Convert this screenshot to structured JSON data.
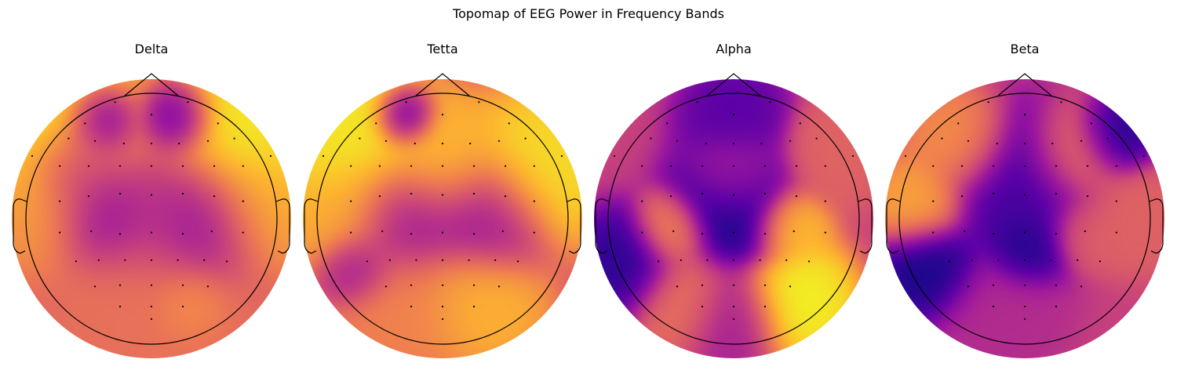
{
  "figure": {
    "title": "Topomap of EEG Power in Frequency Bands"
  },
  "colormap": {
    "name": "plasma",
    "stops": [
      "#0d0887",
      "#5c01a6",
      "#9c179e",
      "#cc4778",
      "#ed7953",
      "#fdb42f",
      "#f0f921"
    ]
  },
  "chart_data": [
    {
      "type": "heatmap",
      "title": "Delta",
      "blobs": [
        {
          "x": -0.7,
          "y": 0.6,
          "value": 0.98,
          "r": 0.35
        },
        {
          "x": 0.7,
          "y": 0.6,
          "value": 0.98,
          "r": 0.35
        },
        {
          "x": -0.85,
          "y": 0.05,
          "value": 0.75,
          "r": 0.25
        },
        {
          "x": 0.85,
          "y": 0.1,
          "value": 0.8,
          "r": 0.25
        },
        {
          "x": 0.0,
          "y": 0.1,
          "value": 0.42,
          "r": 0.3
        },
        {
          "x": -0.4,
          "y": 0.75,
          "value": 0.05,
          "r": 0.15
        },
        {
          "x": 0.2,
          "y": 0.78,
          "value": 0.1,
          "r": 0.15
        },
        {
          "x": -0.4,
          "y": 0.05,
          "value": 0.18,
          "r": 0.22
        },
        {
          "x": 0.4,
          "y": 0.0,
          "value": 0.2,
          "r": 0.25
        },
        {
          "x": -0.6,
          "y": 0.4,
          "value": 0.3,
          "r": 0.2
        },
        {
          "x": 0.0,
          "y": -0.7,
          "value": 0.65,
          "r": 0.45
        },
        {
          "x": 0.3,
          "y": -0.7,
          "value": 0.75,
          "r": 0.15
        }
      ]
    },
    {
      "type": "heatmap",
      "title": "Tetta",
      "blobs": [
        {
          "x": -0.75,
          "y": 0.6,
          "value": 0.98,
          "r": 0.35
        },
        {
          "x": 0.8,
          "y": 0.4,
          "value": 0.95,
          "r": 0.3
        },
        {
          "x": 0.0,
          "y": 0.45,
          "value": 0.85,
          "r": 0.25
        },
        {
          "x": -0.85,
          "y": 0.05,
          "value": 0.8,
          "r": 0.25
        },
        {
          "x": -0.3,
          "y": 0.8,
          "value": 0.05,
          "r": 0.12
        },
        {
          "x": -0.3,
          "y": 0.0,
          "value": 0.3,
          "r": 0.25
        },
        {
          "x": 0.35,
          "y": 0.0,
          "value": 0.3,
          "r": 0.25
        },
        {
          "x": -0.7,
          "y": -0.4,
          "value": 0.3,
          "r": 0.15
        },
        {
          "x": 0.3,
          "y": -0.65,
          "value": 0.85,
          "r": 0.25
        },
        {
          "x": -0.3,
          "y": -0.7,
          "value": 0.7,
          "r": 0.3
        }
      ]
    },
    {
      "type": "heatmap",
      "title": "Alpha",
      "blobs": [
        {
          "x": 0.0,
          "y": 0.1,
          "value": 0.0,
          "r": 0.25
        },
        {
          "x": 0.0,
          "y": 0.35,
          "value": 0.45,
          "r": 0.18
        },
        {
          "x": -0.5,
          "y": -0.1,
          "value": 0.75,
          "r": 0.15
        },
        {
          "x": 0.45,
          "y": -0.05,
          "value": 0.9,
          "r": 0.15
        },
        {
          "x": 0.5,
          "y": -0.65,
          "value": 1.0,
          "r": 0.22
        },
        {
          "x": -0.4,
          "y": -0.65,
          "value": 0.65,
          "r": 0.2
        },
        {
          "x": -0.85,
          "y": -0.35,
          "value": 0.05,
          "r": 0.2
        },
        {
          "x": 0.8,
          "y": 0.5,
          "value": 0.6,
          "r": 0.2
        },
        {
          "x": 0.0,
          "y": 0.8,
          "value": 0.15,
          "r": 0.2
        },
        {
          "x": 0.0,
          "y": -0.8,
          "value": 0.35,
          "r": 0.2
        }
      ]
    },
    {
      "type": "heatmap",
      "title": "Beta",
      "blobs": [
        {
          "x": -0.5,
          "y": 0.6,
          "value": 0.75,
          "r": 0.2
        },
        {
          "x": 0.4,
          "y": 0.5,
          "value": 0.7,
          "r": 0.2
        },
        {
          "x": 0.7,
          "y": 0.65,
          "value": 0.0,
          "r": 0.15
        },
        {
          "x": -0.85,
          "y": 0.1,
          "value": 0.8,
          "r": 0.18
        },
        {
          "x": 0.85,
          "y": 0.0,
          "value": 0.6,
          "r": 0.2
        },
        {
          "x": -0.75,
          "y": -0.4,
          "value": 0.0,
          "r": 0.2
        },
        {
          "x": 0.0,
          "y": -0.25,
          "value": 0.02,
          "r": 0.15
        },
        {
          "x": 0.0,
          "y": 0.25,
          "value": 0.1,
          "r": 0.3
        },
        {
          "x": 0.5,
          "y": -0.1,
          "value": 0.6,
          "r": 0.15
        },
        {
          "x": -0.2,
          "y": -0.75,
          "value": 0.4,
          "r": 0.25
        }
      ]
    }
  ]
}
